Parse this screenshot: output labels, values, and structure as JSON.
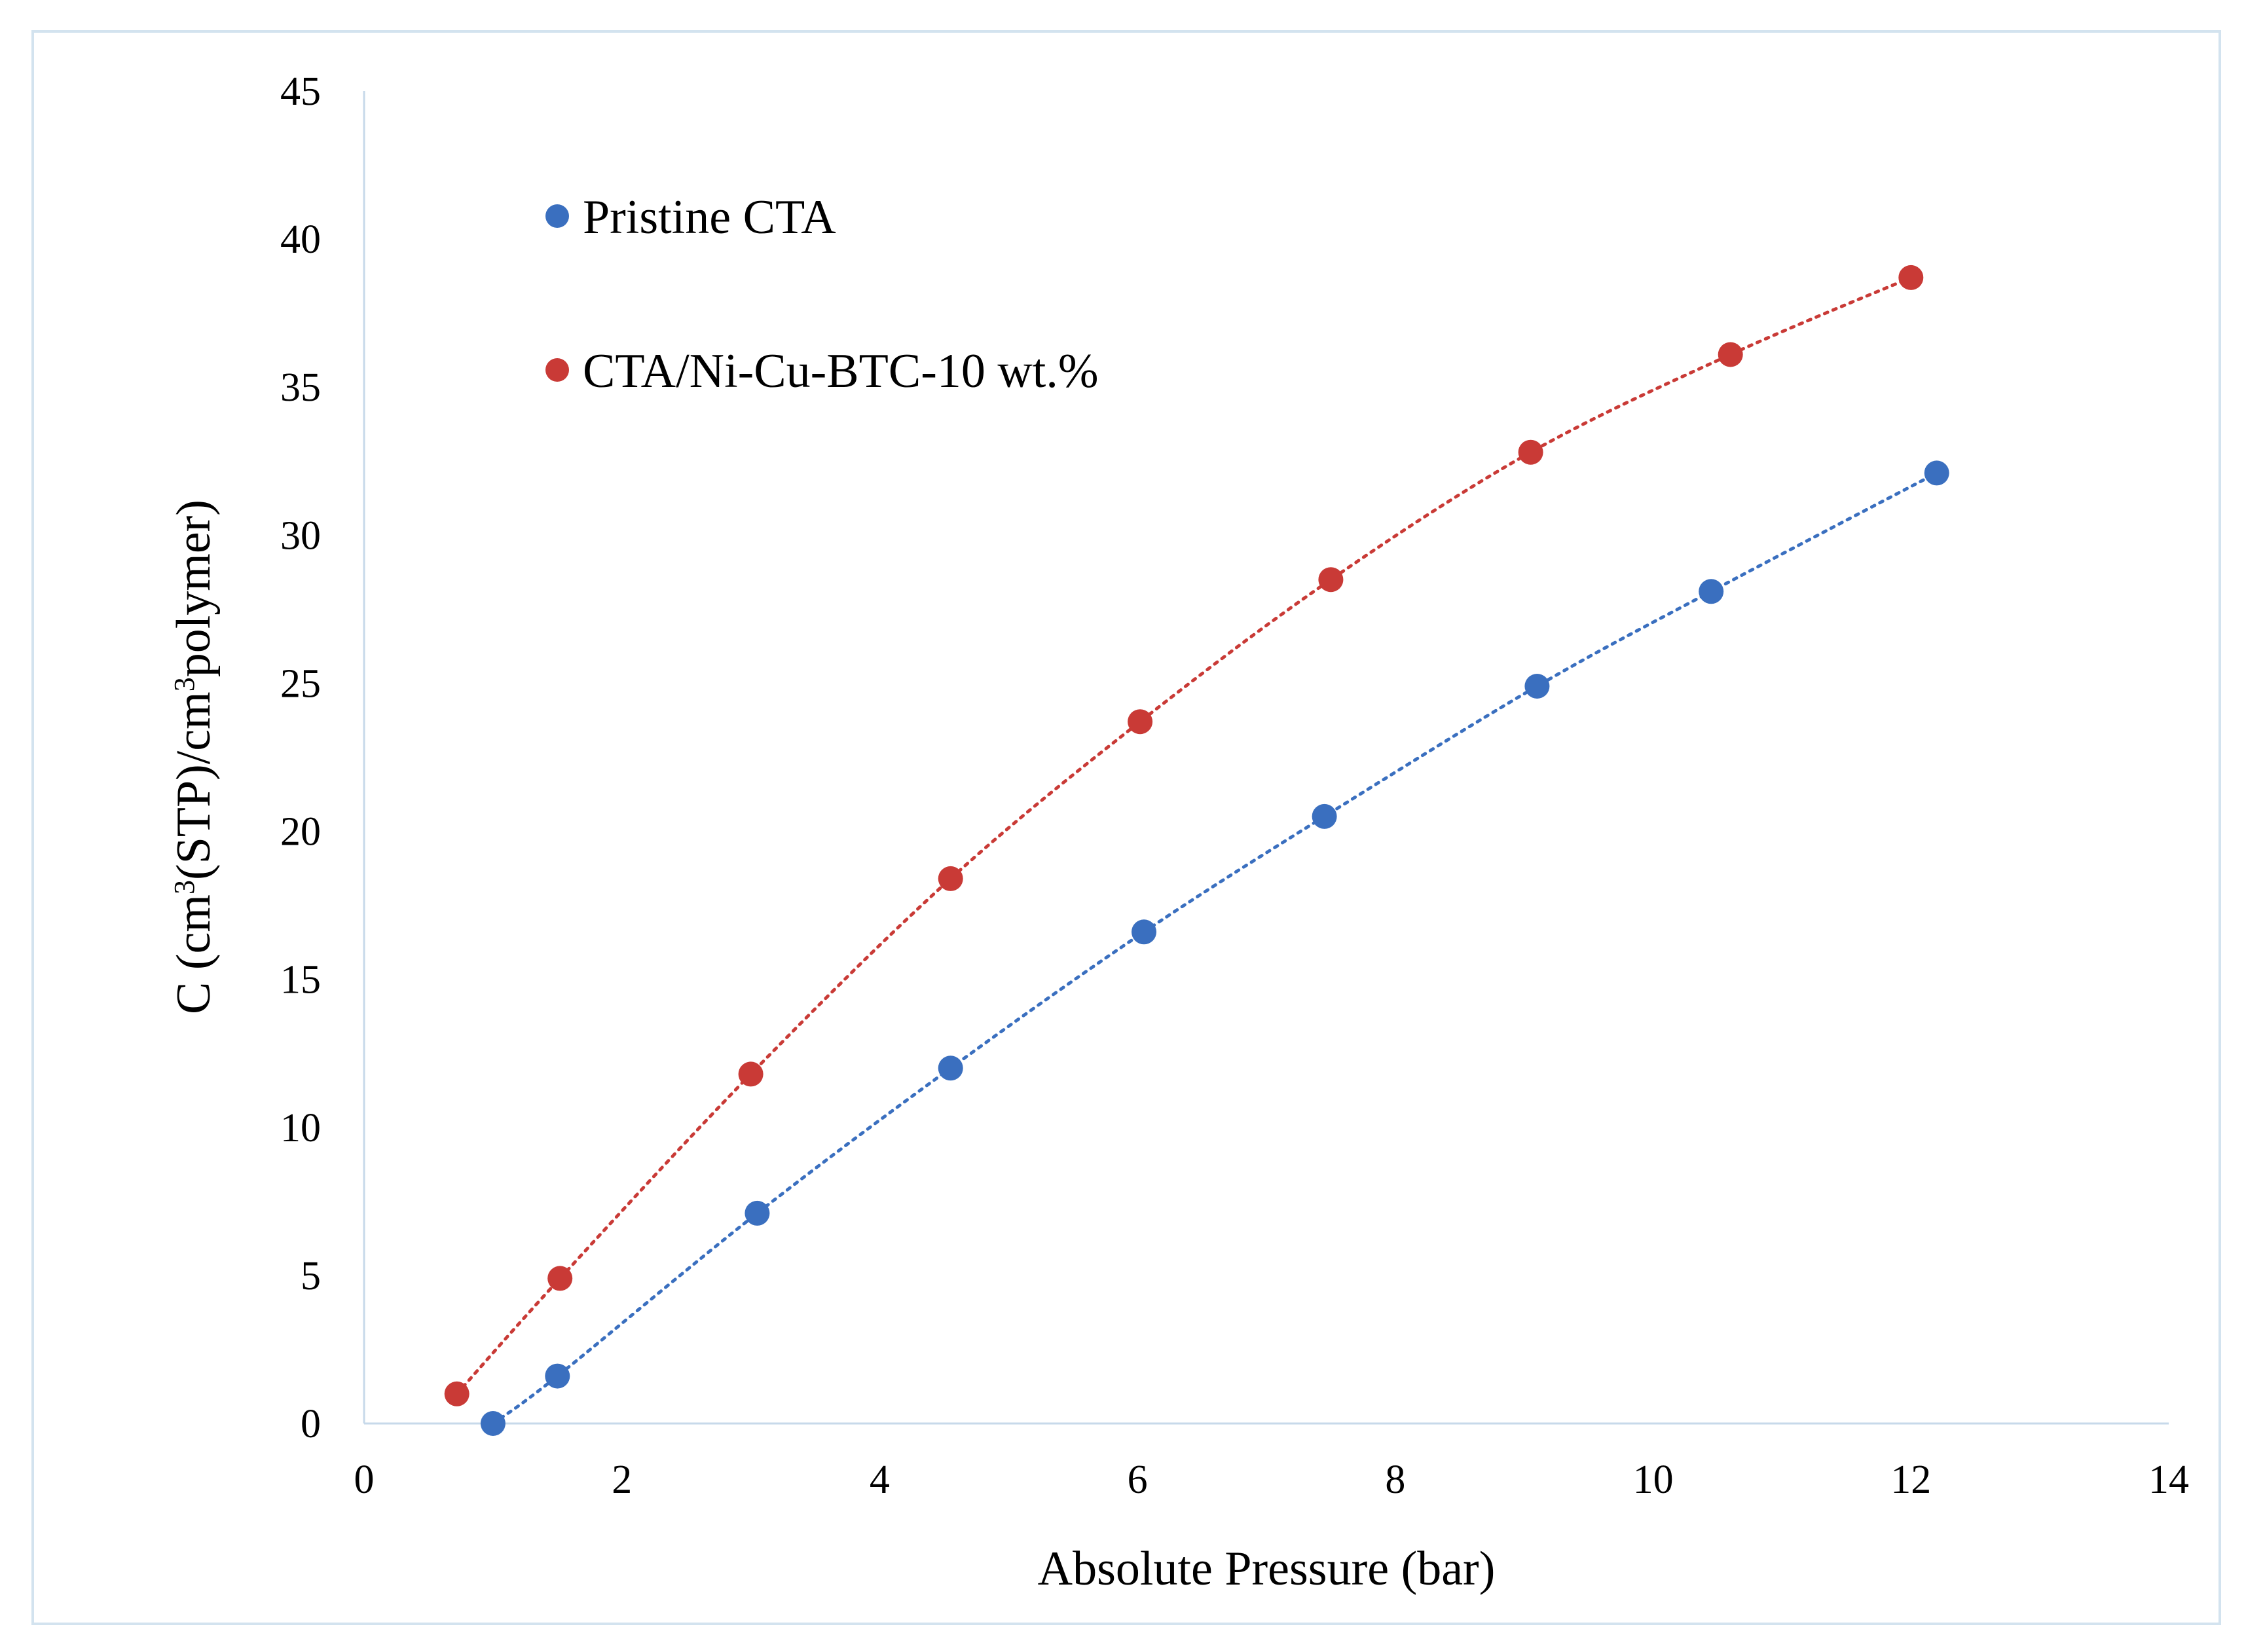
{
  "chart_data": {
    "type": "scatter",
    "title": "",
    "xlabel": "Absolute Pressure (bar)",
    "ylabel": {
      "prefix": "C (cm",
      "sup1": "3",
      "middle": "(STP)/cm",
      "sup2": "3",
      "suffix": "polymer)"
    },
    "xlim": [
      0,
      14
    ],
    "ylim": [
      0,
      45
    ],
    "xticks": [
      "0",
      "2",
      "4",
      "6",
      "8",
      "10",
      "12",
      "14"
    ],
    "yticks": [
      "0",
      "5",
      "10",
      "15",
      "20",
      "25",
      "30",
      "35",
      "40",
      "45"
    ],
    "grid": false,
    "legend_position": "top-left",
    "series": [
      {
        "name": "Pristine CTA",
        "color": "#3a6fbf",
        "line_style": "dotted",
        "x": [
          1.0,
          1.5,
          3.05,
          4.55,
          6.05,
          7.45,
          9.1,
          10.45,
          12.2
        ],
        "y": [
          0.0,
          1.6,
          7.1,
          12.0,
          16.6,
          20.5,
          24.9,
          28.1,
          32.1
        ]
      },
      {
        "name": "CTA/Ni-Cu-BTC-10 wt.%",
        "color": "#c93a36",
        "line_style": "dotted",
        "x": [
          0.72,
          1.52,
          3.0,
          4.55,
          6.02,
          7.5,
          9.05,
          10.6,
          12.0
        ],
        "y": [
          1.0,
          4.9,
          11.8,
          18.4,
          23.7,
          28.5,
          32.8,
          36.1,
          38.7
        ]
      }
    ]
  }
}
